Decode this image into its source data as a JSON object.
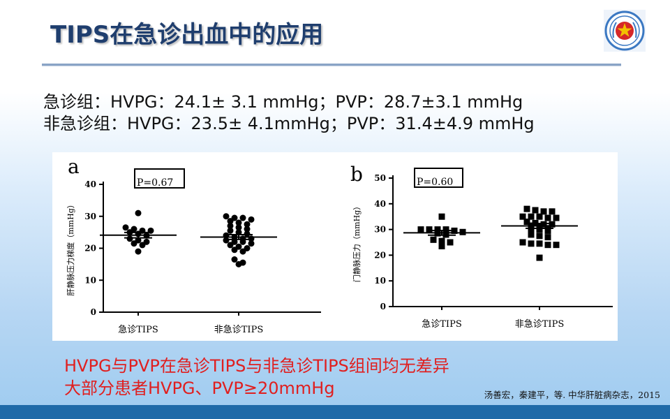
{
  "slide": {
    "title": "TIPS在急诊出血中的应用",
    "stats": [
      "急诊组：HVPG：24.1± 3.1 mmHg；PVP：28.7±3.1 mmHg",
      "非急诊组：HVPG：23.5± 4.1mmHg；PVP：31.4±4.9 mmHg"
    ],
    "conclusions": [
      "HVPG与PVP在急诊TIPS与非急诊TIPS组间均无差异",
      "大部分患者HVPG、PVP≥20mmHg"
    ],
    "citation": "汤善宏，秦建平，等. 中华肝脏病杂志，2015",
    "logo_icon": "military-hospital-emblem-icon"
  },
  "colors": {
    "title": "#1f3e6e",
    "conclusion": "#e01f1f",
    "footer": "#1f6aa8"
  },
  "chart_data": [
    {
      "type": "scatter",
      "panel_label": "a",
      "ylabel": "肝静脉压力梯度（mmHg）",
      "categories": [
        "急诊TIPS",
        "非急诊TIPS"
      ],
      "ylim": [
        0,
        40
      ],
      "yticks": [
        0,
        10,
        20,
        30,
        40
      ],
      "p_label": "P=0.67",
      "series": [
        {
          "points": [
            31,
            26.5,
            26,
            25.5,
            25.5,
            25,
            24.5,
            24,
            23,
            22.5,
            22,
            21.5,
            21,
            19
          ],
          "mean": 24.1,
          "sem": 0.85
        },
        {
          "points": [
            30,
            29.5,
            29.5,
            29,
            28.5,
            28,
            27.5,
            27,
            26.5,
            26,
            25.5,
            25,
            24.5,
            24,
            23.5,
            23,
            23,
            22.5,
            22,
            22,
            21.5,
            21,
            20.5,
            20,
            19.5,
            19,
            16.5,
            15.5,
            15
          ],
          "mean": 23.5,
          "sem": 0.75
        }
      ]
    },
    {
      "type": "scatter",
      "panel_label": "b",
      "ylabel": "门静脉压力（mmHg）",
      "categories": [
        "急诊TIPS",
        "非急诊TIPS"
      ],
      "ylim": [
        0,
        50
      ],
      "yticks": [
        0,
        10,
        20,
        30,
        40,
        50
      ],
      "p_label": "P=0.60",
      "series": [
        {
          "points": [
            35,
            30,
            30,
            30,
            30,
            29.5,
            29,
            28.5,
            28,
            26,
            25.5,
            25,
            23.5
          ],
          "mean": 28.7,
          "sem": 0.9
        },
        {
          "points": [
            38,
            37.5,
            37,
            37,
            35,
            35,
            35,
            34.5,
            34.5,
            33,
            32.5,
            32,
            32,
            31.5,
            31,
            30.5,
            30,
            30,
            29.5,
            28,
            27.5,
            27,
            25,
            24.5,
            24.5,
            24,
            24,
            19
          ],
          "mean": 31.4,
          "sem": 0.95
        }
      ]
    }
  ]
}
